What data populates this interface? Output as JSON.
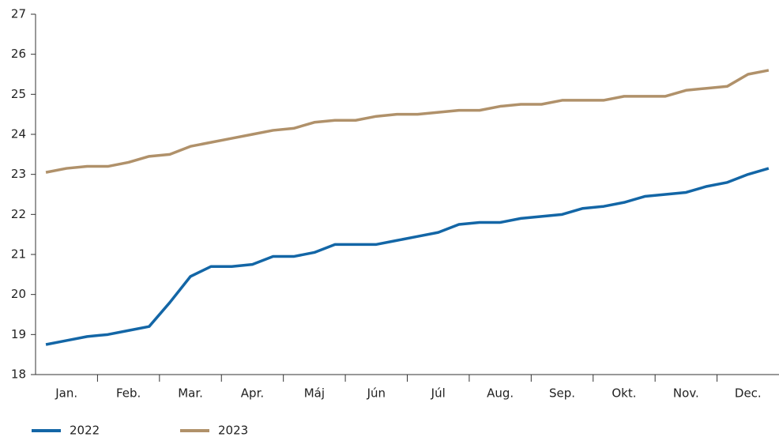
{
  "chart_data": {
    "type": "line",
    "categories": [
      null,
      "Jan.",
      null,
      null,
      "Feb.",
      null,
      null,
      "Mar.",
      null,
      null,
      "Apr.",
      null,
      null,
      "Máj",
      null,
      null,
      "Jún",
      null,
      null,
      "Júl",
      null,
      null,
      "Aug.",
      null,
      null,
      "Sep.",
      null,
      null,
      "Okt.",
      null,
      null,
      "Nov.",
      null,
      null,
      "Dec.",
      null
    ],
    "series": [
      {
        "name": "2022",
        "color": "#1366a6",
        "values": [
          18.75,
          18.85,
          18.95,
          19.0,
          19.1,
          19.2,
          19.8,
          20.45,
          20.7,
          20.7,
          20.75,
          20.95,
          20.95,
          21.05,
          21.25,
          21.25,
          21.25,
          21.35,
          21.45,
          21.55,
          21.75,
          21.8,
          21.8,
          21.9,
          21.95,
          22.0,
          22.15,
          22.2,
          22.3,
          22.45,
          22.5,
          22.55,
          22.7,
          22.8,
          23.0,
          23.15
        ]
      },
      {
        "name": "2023",
        "color": "#b0916a",
        "values": [
          23.05,
          23.15,
          23.2,
          23.2,
          23.3,
          23.45,
          23.5,
          23.7,
          23.8,
          23.9,
          24.0,
          24.1,
          24.15,
          24.3,
          24.35,
          24.35,
          24.45,
          24.5,
          24.5,
          24.55,
          24.6,
          24.6,
          24.7,
          24.75,
          24.75,
          24.85,
          24.85,
          24.85,
          24.95,
          24.95,
          24.95,
          25.1,
          25.15,
          25.2,
          25.5,
          25.6
        ]
      }
    ],
    "ylim": [
      18,
      27
    ],
    "yticks": [
      18,
      19,
      20,
      21,
      22,
      23,
      24,
      25,
      26,
      27
    ]
  }
}
